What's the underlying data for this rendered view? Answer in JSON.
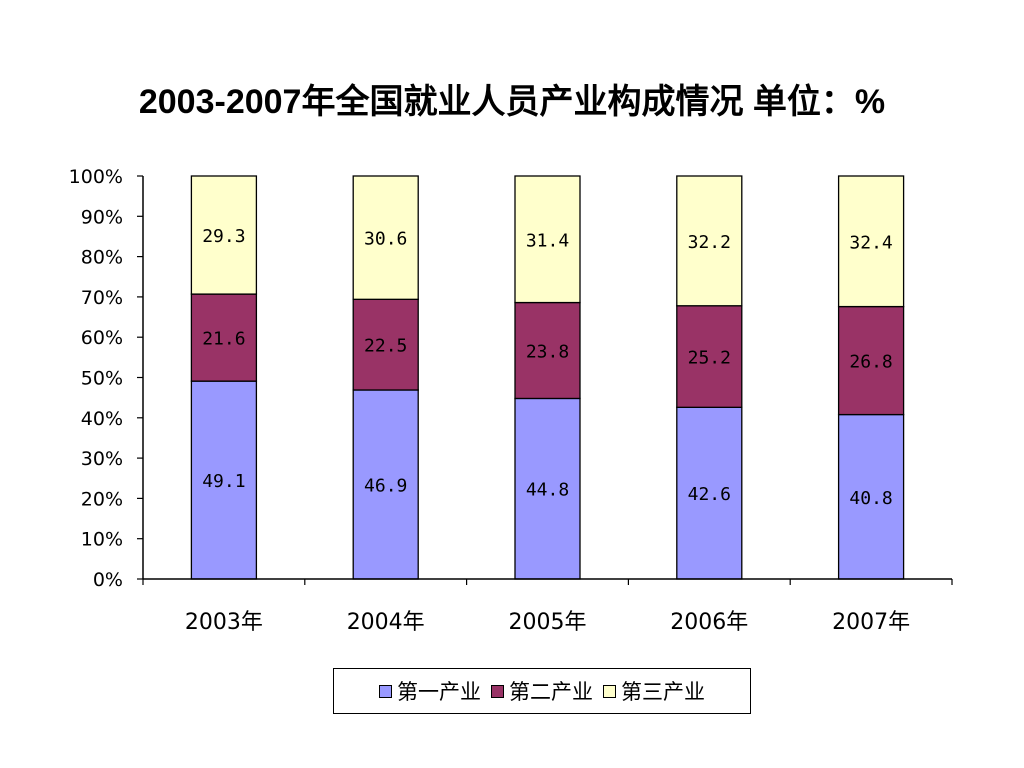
{
  "chart_data": {
    "type": "bar",
    "stacked": true,
    "title": "2003-2007年全国就业人员产业构成情况 单位：%",
    "categories": [
      "2003年",
      "2004年",
      "2005年",
      "2006年",
      "2007年"
    ],
    "series": [
      {
        "name": "第一产业",
        "color": "#9999ff",
        "values": [
          49.1,
          46.9,
          44.8,
          42.6,
          40.8
        ],
        "labels": [
          "49.1",
          "46.9",
          "44.8",
          "42.6",
          "40.8"
        ]
      },
      {
        "name": "第二产业",
        "color": "#993366",
        "values": [
          21.6,
          22.5,
          23.8,
          25.2,
          26.8
        ],
        "labels": [
          "21.6",
          "22.5",
          "23.8",
          "25.2",
          "26.8"
        ]
      },
      {
        "name": "第三产业",
        "color": "#ffffcc",
        "values": [
          29.3,
          30.6,
          31.4,
          32.2,
          32.4
        ],
        "labels": [
          "29.3",
          "30.6",
          "31.4",
          "32.2",
          "32.4"
        ]
      }
    ],
    "yticks": [
      "0%",
      "10%",
      "20%",
      "30%",
      "40%",
      "50%",
      "60%",
      "70%",
      "80%",
      "90%",
      "100%"
    ],
    "ylim": [
      0,
      100
    ],
    "grid": false,
    "legend_position": "bottom"
  }
}
